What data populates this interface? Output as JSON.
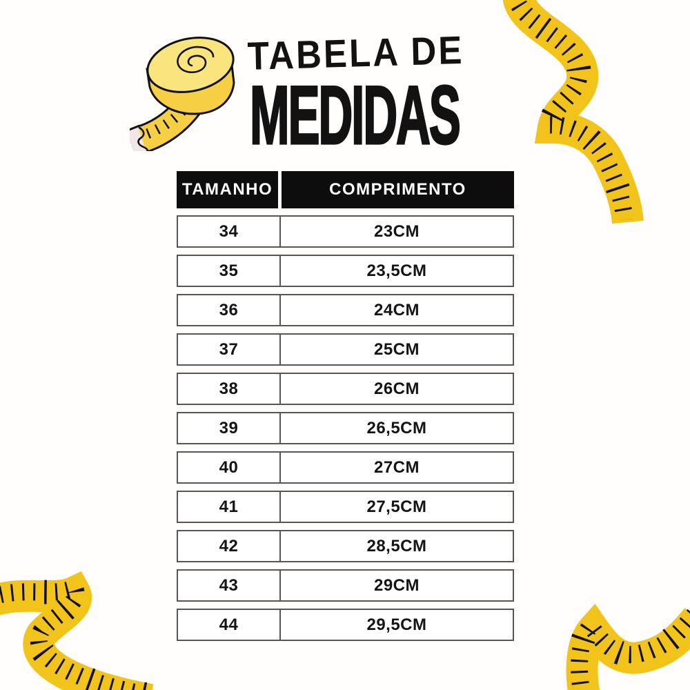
{
  "title": {
    "line1": "TABELA DE",
    "line2": "MEDIDAS"
  },
  "table": {
    "col_headers": [
      "TAMANHO",
      "COMPRIMENTO"
    ],
    "rows": [
      [
        "34",
        "23CM"
      ],
      [
        "35",
        "23,5CM"
      ],
      [
        "36",
        "24CM"
      ],
      [
        "37",
        "25CM"
      ],
      [
        "38",
        "26CM"
      ],
      [
        "39",
        "26,5CM"
      ],
      [
        "40",
        "27CM"
      ],
      [
        "41",
        "27,5CM"
      ],
      [
        "42",
        "28,5CM"
      ],
      [
        "43",
        "29CM"
      ],
      [
        "44",
        "29,5CM"
      ]
    ]
  },
  "decorations": {
    "top_left": "measuring-tape-roll-icon",
    "top_right": "tape-ribbon-icon",
    "bottom_left": "tape-ribbon-icon",
    "bottom_right": "tape-ribbon-icon"
  },
  "colors": {
    "page_bg": "#FFFEFC",
    "ink": "#121212",
    "header_bg": "#0D0D0D",
    "header_text": "#FFFFFF",
    "row_border": "#555555",
    "row_bg": "#FFFFFF",
    "cell_text": "#141414",
    "tape_yellow": "#F2C41B",
    "tape_roll_side": "#F6CF45",
    "tape_roll_top": "#FAE47D",
    "tape_tip": "#F2E6E8"
  }
}
